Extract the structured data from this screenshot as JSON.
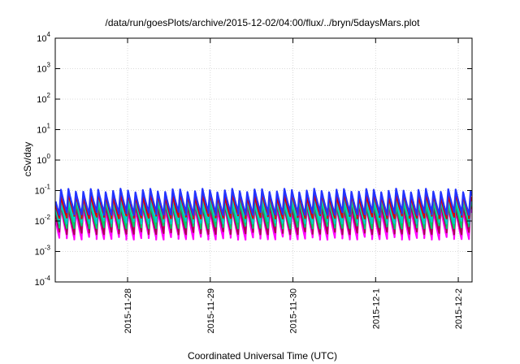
{
  "chart_data": {
    "type": "line",
    "title": "/data/run/goesPlots/archive/2015-12-02/04:00/flux/../bryn/5daysMars.plot",
    "xlabel": "Coordinated Universal Time (UTC)",
    "ylabel": "cSv/day",
    "y_scale": "log",
    "ylim": [
      0.0001,
      10000
    ],
    "y_ticks": [
      {
        "base": "10",
        "exp": "-4"
      },
      {
        "base": "10",
        "exp": "-3"
      },
      {
        "base": "10",
        "exp": "-2"
      },
      {
        "base": "10",
        "exp": "-1"
      },
      {
        "base": "10",
        "exp": "0"
      },
      {
        "base": "10",
        "exp": "1"
      },
      {
        "base": "10",
        "exp": "2"
      },
      {
        "base": "10",
        "exp": "3"
      },
      {
        "base": "10",
        "exp": "4"
      }
    ],
    "xlim": [
      "2015-11-27T03:00",
      "2015-12-02T04:00"
    ],
    "x_ticks": [
      "2015-11-28",
      "2015-11-29",
      "2015-11-30",
      "2015-12-1",
      "2015-12-2"
    ],
    "x_tick_dates": [
      "2015-11-28",
      "2015-11-29",
      "2015-11-30",
      "2015-12-01",
      "2015-12-02"
    ],
    "grid": true,
    "cycles_per_day": 11.1,
    "series": [
      {
        "color": "#ff00ff",
        "peak": 0.028,
        "trough": 0.0028
      },
      {
        "color": "#aa0055",
        "peak": 0.035,
        "trough": 0.0042
      },
      {
        "color": "#00cc66",
        "peak": 0.045,
        "trough": 0.0065
      },
      {
        "color": "#00cccc",
        "peak": 0.055,
        "trough": 0.0095
      },
      {
        "color": "#dd0000",
        "peak": 0.075,
        "trough": 0.014
      },
      {
        "color": "#2233ff",
        "peak": 0.105,
        "trough": 0.018
      }
    ]
  }
}
